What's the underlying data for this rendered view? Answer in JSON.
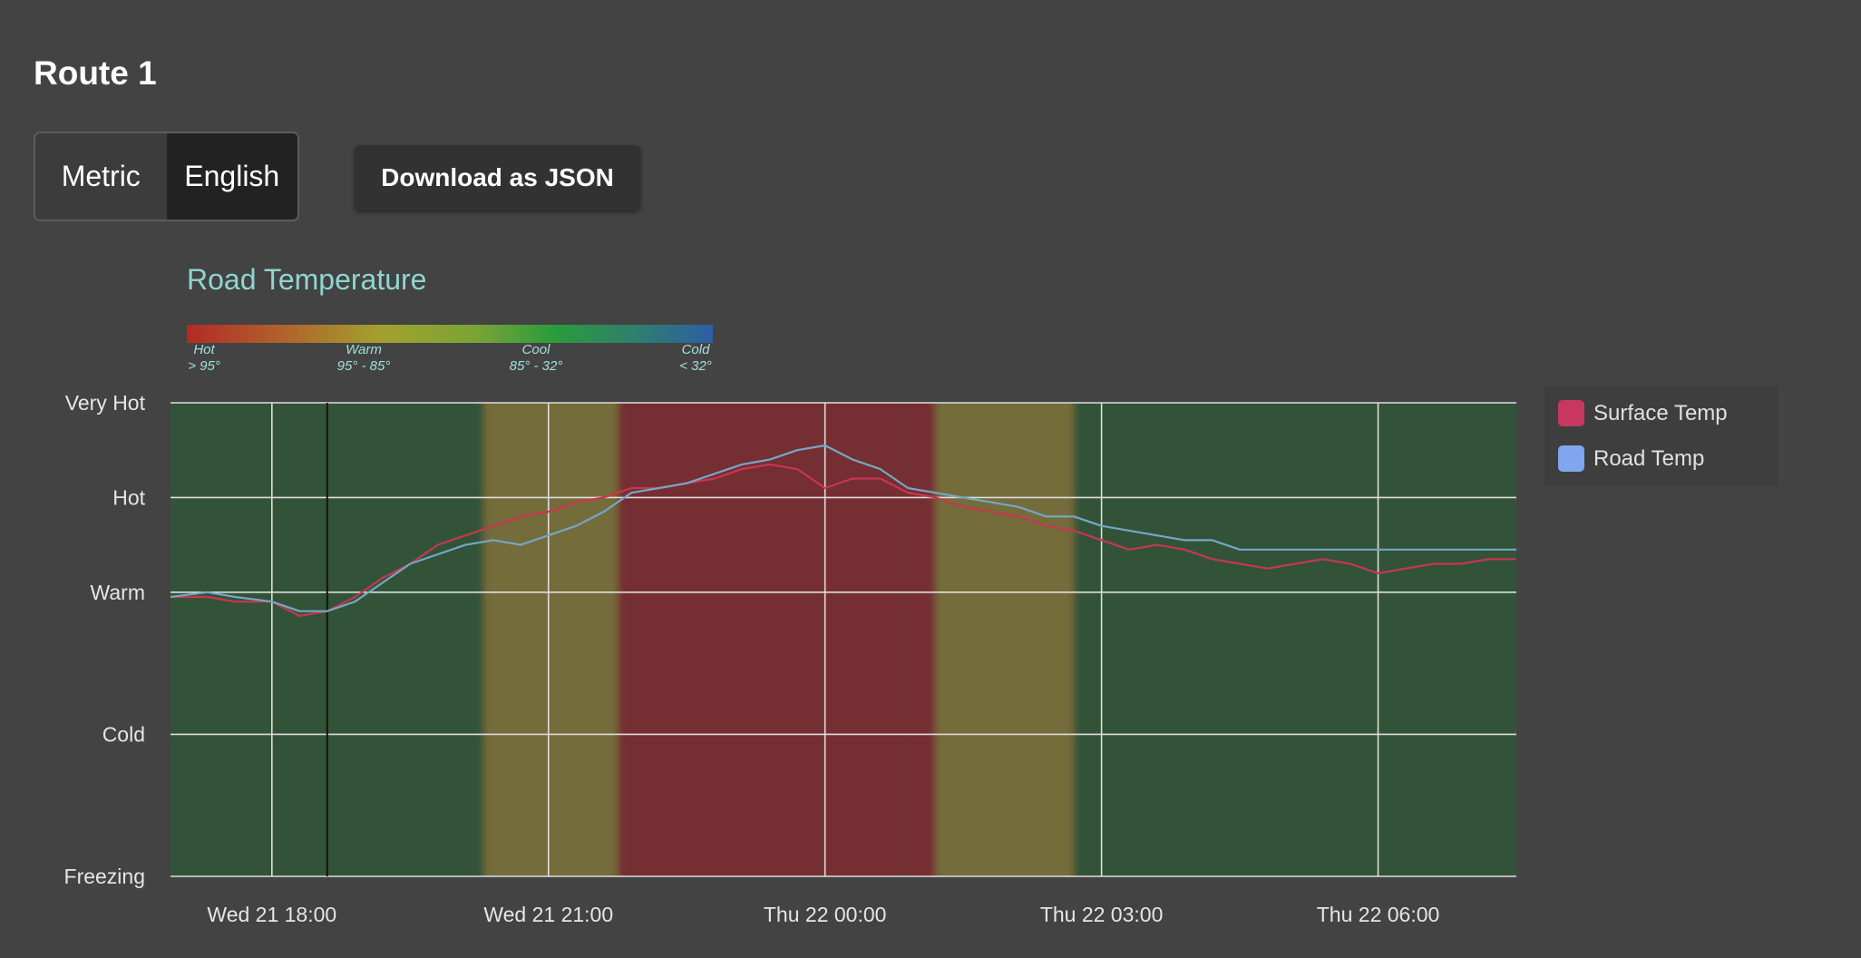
{
  "page": {
    "title": "Route 1"
  },
  "units": {
    "metric_label": "Metric",
    "english_label": "English",
    "selected": "English"
  },
  "download": {
    "label": "Download as JSON"
  },
  "scale": {
    "stops": [
      {
        "name": "Hot",
        "range": "> 95°"
      },
      {
        "name": "Warm",
        "range": "95° - 85°"
      },
      {
        "name": "Cool",
        "range": "85° - 32°"
      },
      {
        "name": "Cold",
        "range": "< 32°"
      }
    ]
  },
  "chart_data": {
    "type": "line",
    "title": "Road Temperature",
    "y_categories": [
      "Freezing",
      "Cold",
      "Warm",
      "Hot",
      "Very Hot"
    ],
    "y_levels": [
      0,
      1.5,
      3,
      4,
      5
    ],
    "x_ticks": [
      "Wed 21 18:00",
      "Wed 21 21:00",
      "Thu 22 00:00",
      "Thu 22 03:00",
      "Thu 22 06:00"
    ],
    "x_tick_hours": [
      18,
      21,
      24,
      27,
      30
    ],
    "x_range_hours": [
      16.9,
      31.5
    ],
    "y_range": [
      0,
      5
    ],
    "cursor_hour": 18.6,
    "legend_position": "right",
    "grid": true,
    "condition_bands": [
      {
        "from": 16.9,
        "to": 20.3,
        "condition": "cool"
      },
      {
        "from": 20.3,
        "to": 21.75,
        "condition": "warm"
      },
      {
        "from": 21.75,
        "to": 21.85,
        "condition": "hot"
      },
      {
        "from": 21.85,
        "to": 24.9,
        "condition": "hot"
      },
      {
        "from": 24.9,
        "to": 25.2,
        "condition": "hot"
      },
      {
        "from": 25.2,
        "to": 26.7,
        "condition": "warm"
      },
      {
        "from": 26.7,
        "to": 31.5,
        "condition": "cool"
      }
    ],
    "condition_colors": {
      "hot": "#742f33",
      "warm": "#756c3a",
      "cool": "#335238"
    },
    "series": [
      {
        "name": "Surface Temp",
        "color": "#c8374f",
        "x": [
          16.9,
          17.3,
          17.6,
          18.0,
          18.3,
          18.6,
          18.9,
          19.2,
          19.5,
          19.8,
          20.1,
          20.4,
          20.7,
          21.0,
          21.3,
          21.6,
          21.9,
          22.2,
          22.5,
          22.8,
          23.1,
          23.4,
          23.7,
          24.0,
          24.3,
          24.6,
          24.9,
          25.2,
          25.5,
          25.8,
          26.1,
          26.4,
          26.7,
          27.0,
          27.3,
          27.6,
          27.9,
          28.2,
          28.5,
          28.8,
          29.1,
          29.4,
          29.7,
          30.0,
          30.3,
          30.6,
          30.9,
          31.2,
          31.5
        ],
        "values": [
          2.95,
          2.95,
          2.9,
          2.9,
          2.75,
          2.8,
          2.95,
          3.15,
          3.3,
          3.5,
          3.6,
          3.7,
          3.8,
          3.85,
          3.95,
          4.0,
          4.1,
          4.1,
          4.15,
          4.2,
          4.3,
          4.35,
          4.3,
          4.1,
          4.2,
          4.2,
          4.05,
          4.0,
          3.9,
          3.85,
          3.8,
          3.7,
          3.65,
          3.55,
          3.45,
          3.5,
          3.45,
          3.35,
          3.3,
          3.25,
          3.3,
          3.35,
          3.3,
          3.2,
          3.25,
          3.3,
          3.3,
          3.35,
          3.35
        ]
      },
      {
        "name": "Road Temp",
        "color": "#76a6c6",
        "x": [
          16.9,
          17.3,
          17.6,
          18.0,
          18.3,
          18.6,
          18.9,
          19.2,
          19.5,
          19.8,
          20.1,
          20.4,
          20.7,
          21.0,
          21.3,
          21.6,
          21.9,
          22.2,
          22.5,
          22.8,
          23.1,
          23.4,
          23.7,
          24.0,
          24.3,
          24.6,
          24.9,
          25.2,
          25.5,
          25.8,
          26.1,
          26.4,
          26.7,
          27.0,
          27.3,
          27.6,
          27.9,
          28.2,
          28.5,
          28.8,
          29.1,
          29.4,
          29.7,
          30.0,
          30.3,
          30.6,
          30.9,
          31.2,
          31.5
        ],
        "values": [
          2.95,
          3.0,
          2.95,
          2.9,
          2.8,
          2.8,
          2.9,
          3.1,
          3.3,
          3.4,
          3.5,
          3.55,
          3.5,
          3.6,
          3.7,
          3.85,
          4.05,
          4.1,
          4.15,
          4.25,
          4.35,
          4.4,
          4.5,
          4.55,
          4.4,
          4.3,
          4.1,
          4.05,
          4.0,
          3.95,
          3.9,
          3.8,
          3.8,
          3.7,
          3.65,
          3.6,
          3.55,
          3.55,
          3.45,
          3.45,
          3.45,
          3.45,
          3.45,
          3.45,
          3.45,
          3.45,
          3.45,
          3.45,
          3.45
        ]
      }
    ]
  },
  "legend": {
    "items": [
      {
        "label": "Surface Temp",
        "color": "#c8375f"
      },
      {
        "label": "Road Temp",
        "color": "#7fa6ee"
      }
    ]
  }
}
